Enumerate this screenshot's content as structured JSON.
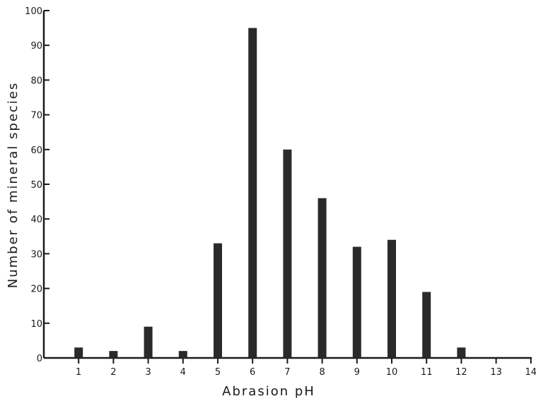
{
  "chart_data": {
    "type": "bar",
    "title": "",
    "xlabel": "Abrasion pH",
    "ylabel": "Number of mineral species",
    "categories": [
      "1",
      "2",
      "3",
      "4",
      "5",
      "6",
      "7",
      "8",
      "9",
      "10",
      "11",
      "12",
      "13",
      "14"
    ],
    "values": [
      3,
      2,
      9,
      2,
      33,
      95,
      60,
      46,
      32,
      34,
      19,
      3,
      0,
      0
    ],
    "ylim": [
      0,
      100
    ],
    "yticks": [
      "0",
      "10",
      "20",
      "30",
      "40",
      "50",
      "60",
      "70",
      "80",
      "90",
      "100"
    ],
    "xlim": [
      0,
      14
    ],
    "grid": false,
    "colors": {
      "bar": "#2a2a2a",
      "axis": "#1a1a1a"
    }
  }
}
